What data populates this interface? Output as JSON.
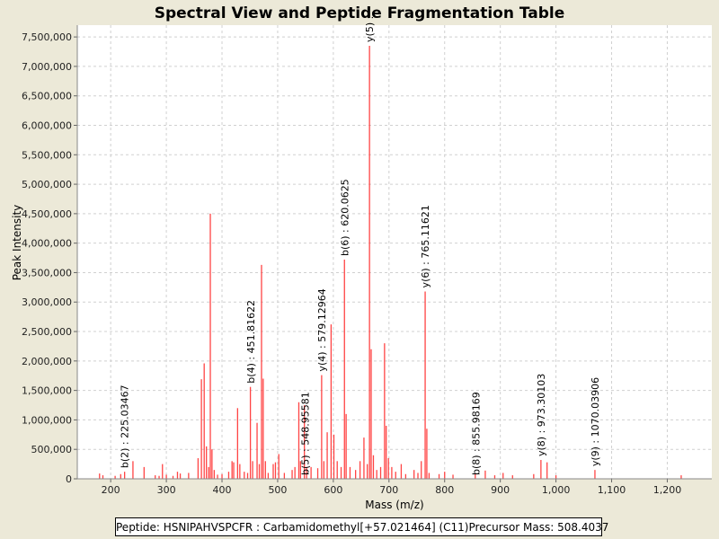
{
  "chart_data": {
    "type": "bar",
    "title": "Spectral View and Peptide Fragmentation Table",
    "xlabel": "Mass (m/z)",
    "ylabel": "Peak Intensity",
    "xlim": [
      140,
      1280
    ],
    "ylim": [
      0,
      7700000
    ],
    "x_ticks": [
      200,
      300,
      400,
      500,
      600,
      700,
      800,
      900,
      1000,
      1100,
      1200
    ],
    "x_tick_labels": [
      "200",
      "300",
      "400",
      "500",
      "600",
      "700",
      "800",
      "900",
      "1,000",
      "1,100",
      "1,200"
    ],
    "y_ticks": [
      0,
      500000,
      1000000,
      1500000,
      2000000,
      2500000,
      3000000,
      3500000,
      4000000,
      4500000,
      5000000,
      5500000,
      6000000,
      6500000,
      7000000,
      7500000
    ],
    "y_tick_labels": [
      "0",
      "500,000",
      "1,000,000",
      "1,500,000",
      "2,000,000",
      "2,500,000",
      "3,000,000",
      "3,500,000",
      "4,000,000",
      "4,500,000",
      "5,000,000",
      "5,500,000",
      "6,000,000",
      "6,500,000",
      "7,000,000",
      "7,500,000"
    ],
    "grid": true,
    "peak_color": "#ff4444",
    "peaks": [
      [
        180,
        90000
      ],
      [
        186,
        60000
      ],
      [
        208,
        50000
      ],
      [
        218,
        80000
      ],
      [
        225,
        120000
      ],
      [
        240,
        300000
      ],
      [
        260,
        200000
      ],
      [
        280,
        60000
      ],
      [
        287,
        50000
      ],
      [
        293,
        250000
      ],
      [
        300,
        70000
      ],
      [
        312,
        50000
      ],
      [
        320,
        120000
      ],
      [
        325,
        90000
      ],
      [
        340,
        100000
      ],
      [
        357,
        350000
      ],
      [
        363,
        1690000
      ],
      [
        368,
        1960000
      ],
      [
        372,
        550000
      ],
      [
        376,
        200000
      ],
      [
        379,
        4500000
      ],
      [
        382,
        500000
      ],
      [
        386,
        150000
      ],
      [
        392,
        70000
      ],
      [
        400,
        80000
      ],
      [
        412,
        120000
      ],
      [
        418,
        300000
      ],
      [
        421,
        280000
      ],
      [
        428,
        1200000
      ],
      [
        432,
        250000
      ],
      [
        440,
        120000
      ],
      [
        446,
        100000
      ],
      [
        451,
        1560000
      ],
      [
        455,
        300000
      ],
      [
        463,
        950000
      ],
      [
        467,
        250000
      ],
      [
        471,
        3630000
      ],
      [
        474,
        1700000
      ],
      [
        478,
        300000
      ],
      [
        483,
        100000
      ],
      [
        492,
        250000
      ],
      [
        496,
        280000
      ],
      [
        502,
        420000
      ],
      [
        512,
        100000
      ],
      [
        526,
        150000
      ],
      [
        531,
        200000
      ],
      [
        538,
        1300000
      ],
      [
        541,
        300000
      ],
      [
        548,
        1250000
      ],
      [
        552,
        200000
      ],
      [
        560,
        200000
      ],
      [
        572,
        180000
      ],
      [
        579,
        1760000
      ],
      [
        583,
        300000
      ],
      [
        589,
        790000
      ],
      [
        596,
        2620000
      ],
      [
        601,
        750000
      ],
      [
        607,
        300000
      ],
      [
        614,
        200000
      ],
      [
        620,
        3720000
      ],
      [
        623,
        1100000
      ],
      [
        630,
        200000
      ],
      [
        640,
        150000
      ],
      [
        648,
        300000
      ],
      [
        655,
        700000
      ],
      [
        661,
        250000
      ],
      [
        665,
        7350000
      ],
      [
        668,
        2200000
      ],
      [
        672,
        400000
      ],
      [
        678,
        150000
      ],
      [
        685,
        200000
      ],
      [
        692,
        2300000
      ],
      [
        695,
        900000
      ],
      [
        699,
        350000
      ],
      [
        705,
        200000
      ],
      [
        712,
        120000
      ],
      [
        722,
        250000
      ],
      [
        730,
        80000
      ],
      [
        745,
        150000
      ],
      [
        752,
        100000
      ],
      [
        758,
        300000
      ],
      [
        765,
        3180000
      ],
      [
        768,
        850000
      ],
      [
        772,
        100000
      ],
      [
        790,
        80000
      ],
      [
        800,
        120000
      ],
      [
        815,
        70000
      ],
      [
        855,
        80000
      ],
      [
        873,
        140000
      ],
      [
        890,
        60000
      ],
      [
        905,
        100000
      ],
      [
        922,
        60000
      ],
      [
        960,
        80000
      ],
      [
        973,
        320000
      ],
      [
        984,
        280000
      ],
      [
        1000,
        60000
      ],
      [
        1070,
        150000
      ],
      [
        1225,
        60000
      ]
    ],
    "annotations": [
      {
        "mz": 225.03467,
        "peak": 120000,
        "label": "b(2) : 225.03467"
      },
      {
        "mz": 451.81622,
        "peak": 1560000,
        "label": "b(4) : 451.81622"
      },
      {
        "mz": 548.95581,
        "peak": 0,
        "label": "b(5) : 548.95581"
      },
      {
        "mz": 579.12964,
        "peak": 1760000,
        "label": "y(4) : 579.12964"
      },
      {
        "mz": 620.0625,
        "peak": 3720000,
        "label": "b(6) : 620.0625"
      },
      {
        "mz": 665.0,
        "peak": 7350000,
        "label": "y(5) :"
      },
      {
        "mz": 765.11621,
        "peak": 3180000,
        "label": "y(6) : 765.11621"
      },
      {
        "mz": 855.98169,
        "peak": 0,
        "label": "b(8) : 855.98169"
      },
      {
        "mz": 973.30103,
        "peak": 320000,
        "label": "y(8) : 973.30103"
      },
      {
        "mz": 1070.03906,
        "peak": 150000,
        "label": "y(9) : 1070.03906"
      }
    ]
  },
  "caption": {
    "peptide": "Peptide: HSNIPAHVSPCFR : Carbamidomethyl[+57.021464] (C11)",
    "precursor": "Precursor Mass: 508.4037"
  }
}
